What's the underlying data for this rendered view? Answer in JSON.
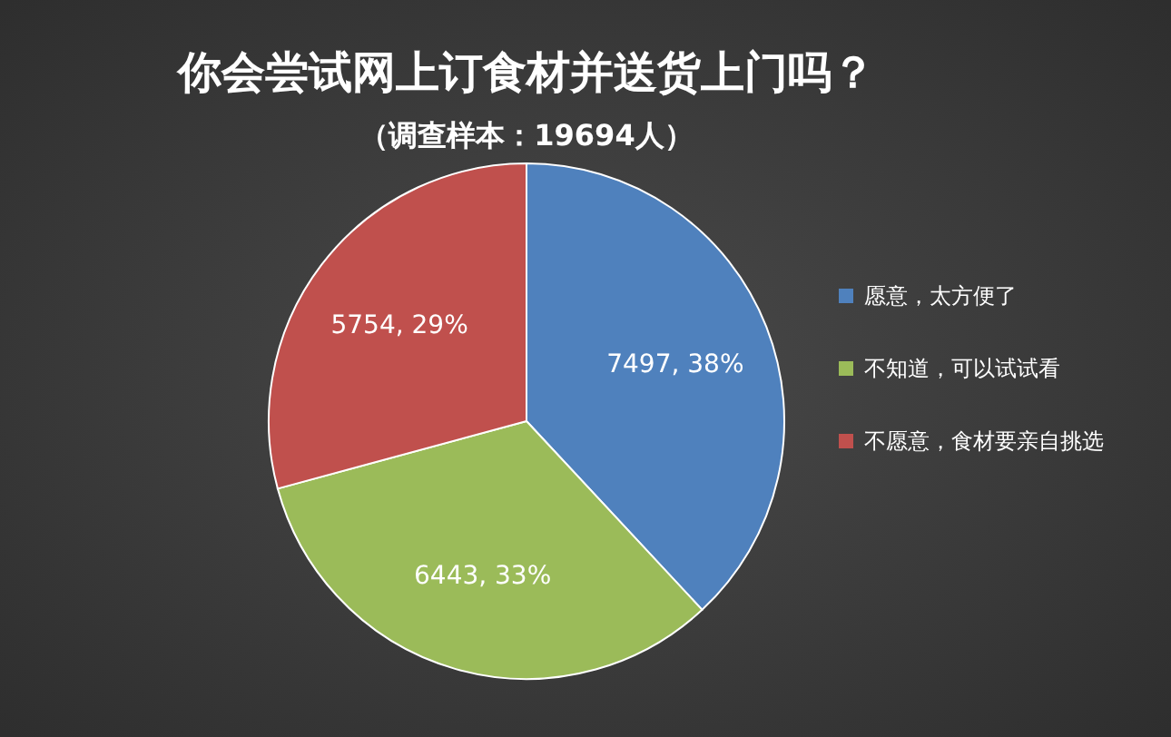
{
  "chart_data": {
    "type": "pie",
    "title": "你会尝试网上订食材并送货上门吗？",
    "subtitle": "（调查样本：19694人）",
    "categories": [
      "愿意，太方便了",
      "不知道，可以试试看",
      "不愿意，食材要亲自挑选"
    ],
    "values": [
      7497,
      6443,
      5754
    ],
    "colors": [
      "#4f81bd",
      "#9bbb59",
      "#c0504d"
    ],
    "value_labels": [
      "7497, 38%",
      "6443, 33%",
      "5754, 29%"
    ],
    "legend": "right"
  }
}
